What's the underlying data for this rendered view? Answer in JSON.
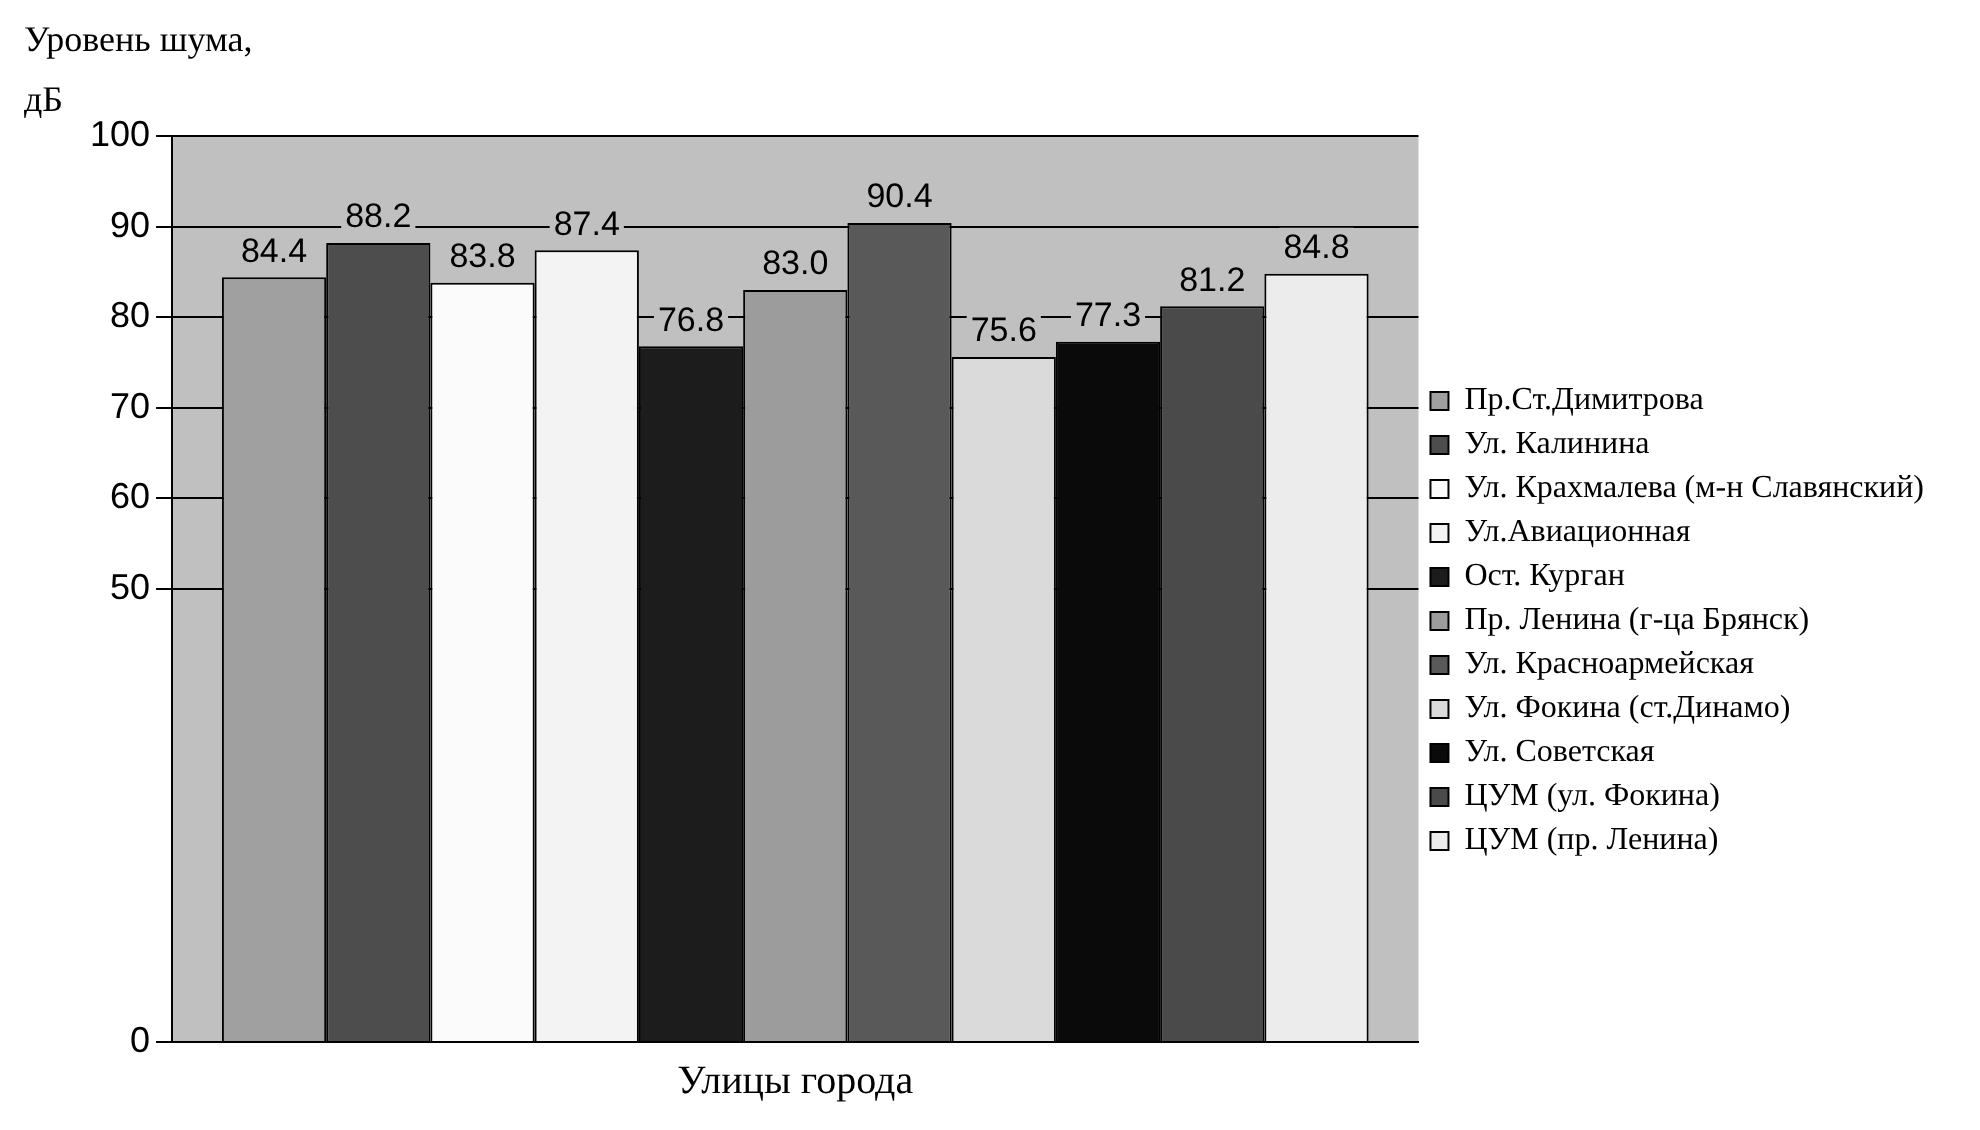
{
  "chart_data": {
    "type": "bar",
    "ylabel": "Уровень шума, дБ",
    "xlabel": "Улицы города",
    "categories": [
      null
    ],
    "series": [
      {
        "name": "Пр.Ст.Димитрова",
        "color": "#a0a0a0",
        "values": [
          84.4
        ],
        "value_labels": [
          "84.4"
        ]
      },
      {
        "name": "Ул. Калинина",
        "color": "#4d4d4d",
        "values": [
          88.2
        ],
        "value_labels": [
          "88.2"
        ]
      },
      {
        "name": "Ул. Крахмалева (м-н Славянский)",
        "color": "#fbfbfb",
        "values": [
          83.8
        ],
        "value_labels": [
          "83.8"
        ]
      },
      {
        "name": "Ул.Авиационная",
        "color": "#f3f3f3",
        "values": [
          87.4
        ],
        "value_labels": [
          "87.4"
        ]
      },
      {
        "name": "Ост. Курган",
        "color": "#1c1c1c",
        "values": [
          76.8
        ],
        "value_labels": [
          "76.8"
        ]
      },
      {
        "name": "Пр. Ленина (г-ца Брянск)",
        "color": "#9c9c9c",
        "values": [
          83.0
        ],
        "value_labels": [
          "83.0"
        ]
      },
      {
        "name": "Ул. Красноармейская",
        "color": "#595959",
        "values": [
          90.4
        ],
        "value_labels": [
          "90.4"
        ]
      },
      {
        "name": "Ул. Фокина (ст.Динамо)",
        "color": "#dadada",
        "values": [
          75.6
        ],
        "value_labels": [
          "75.6"
        ]
      },
      {
        "name": "Ул. Советская",
        "color": "#0a0a0a",
        "values": [
          77.3
        ],
        "value_labels": [
          "77.3"
        ]
      },
      {
        "name": "ЦУМ (ул. Фокина)",
        "color": "#4a4a4a",
        "values": [
          81.2
        ],
        "value_labels": [
          "81.2"
        ]
      },
      {
        "name": "ЦУМ (пр. Ленина)",
        "color": "#ececec",
        "values": [
          84.8
        ],
        "value_labels": [
          "84.8"
        ]
      }
    ],
    "ylim": [
      0,
      100
    ],
    "yticks": [
      0,
      50,
      60,
      70,
      80,
      90,
      100
    ],
    "grid": "y",
    "legend": "right"
  }
}
